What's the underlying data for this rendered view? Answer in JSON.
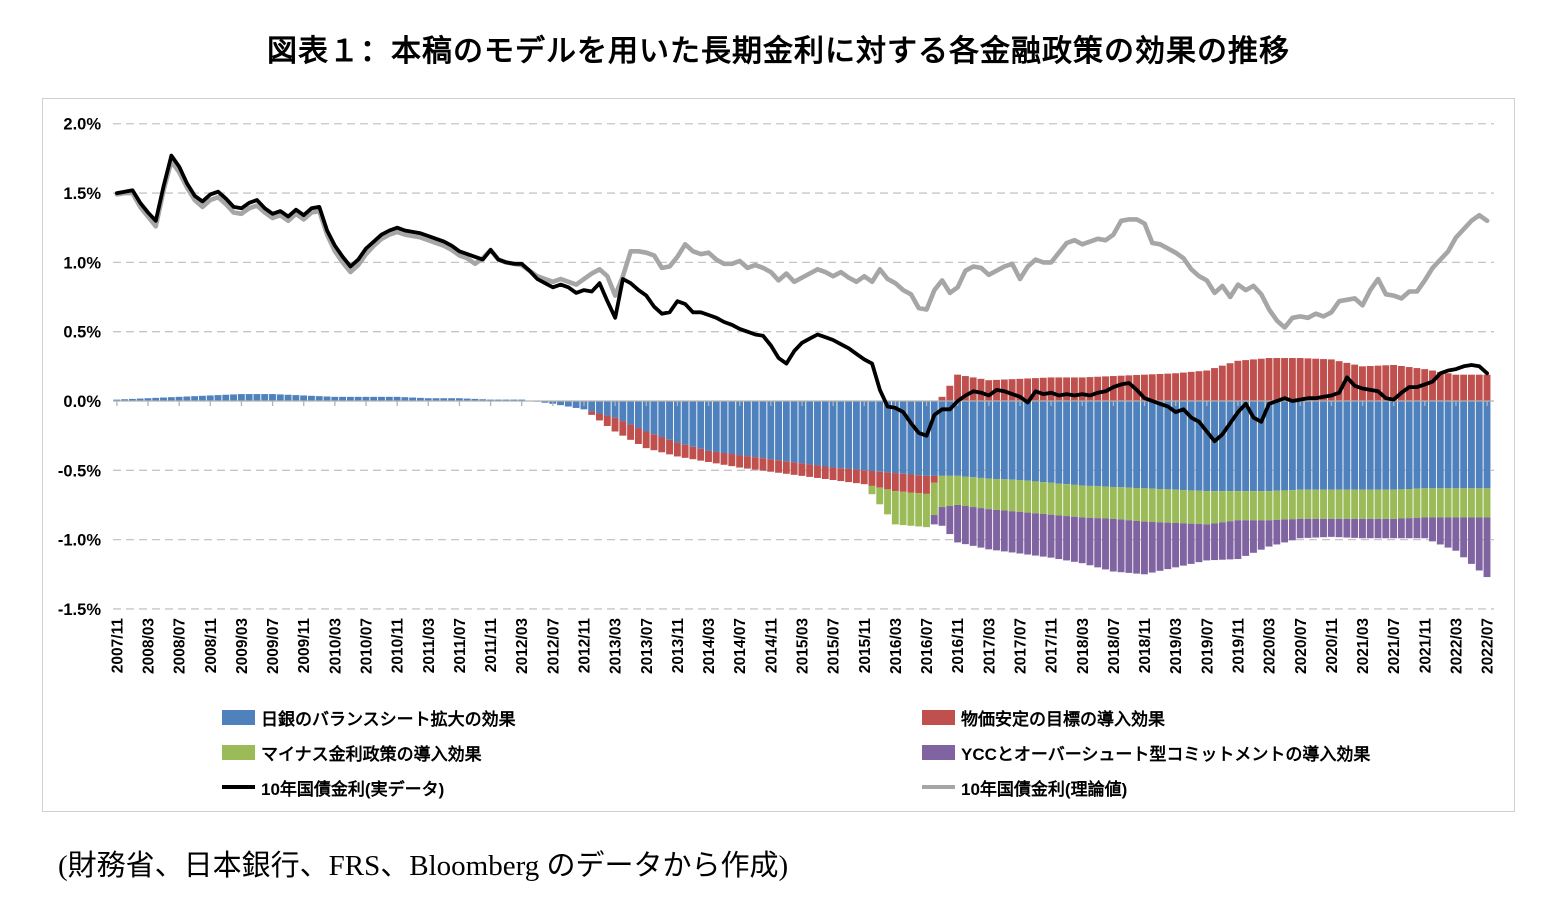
{
  "figure": {
    "title": "図表１：本稿のモデルを用いた長期金利に対する各金融政策の効果の推移",
    "source_note": "(財務省、日本銀行、FRS、Bloomberg のデータから作成)"
  },
  "chart_data": {
    "type": "bar",
    "subtype": "monthly stacked bars with two overlay lines",
    "x_start": "2007/11",
    "x_end": "2022/07",
    "x_interval_months": 1,
    "n_months": 177,
    "tick_month_step": 4,
    "tick_labels": [
      "2007/11",
      "2008/03",
      "2008/07",
      "2008/11",
      "2009/03",
      "2009/07",
      "2009/11",
      "2010/03",
      "2010/07",
      "2010/11",
      "2011/03",
      "2011/07",
      "2011/11",
      "2012/03",
      "2012/07",
      "2012/11",
      "2013/03",
      "2013/07",
      "2013/11",
      "2014/03",
      "2014/07",
      "2014/11",
      "2015/03",
      "2015/07",
      "2015/11",
      "2016/03",
      "2016/07",
      "2016/11",
      "2017/03",
      "2017/07",
      "2017/11",
      "2018/03",
      "2018/07",
      "2018/11",
      "2019/03",
      "2019/07",
      "2019/11",
      "2020/03",
      "2020/07",
      "2020/11",
      "2021/03",
      "2021/07",
      "2021/11",
      "2022/03",
      "2022/07"
    ],
    "ylim": [
      -1.5,
      2.0
    ],
    "ytick_labels": [
      "2.0%",
      "1.5%",
      "1.0%",
      "0.5%",
      "0.0%",
      "-0.5%",
      "-1.0%",
      "-1.5%"
    ],
    "ytick_values": [
      2.0,
      1.5,
      1.0,
      0.5,
      0.0,
      -0.5,
      -1.0,
      -1.5
    ],
    "grid": "dashed horizontal gridlines, solid zero axis with down ticks",
    "legend_position": "bottom inside plot box, two columns",
    "axis_color": "#b3b3b3",
    "grid_color": "#c6c6c6",
    "bar_series": [
      {
        "name": "日銀のバランスシート拡大の効果",
        "color": "#4f81bd",
        "values_at_ticks": [
          0.01,
          0.02,
          0.03,
          0.04,
          0.05,
          0.05,
          0.04,
          0.03,
          0.03,
          0.03,
          0.02,
          0.02,
          0.01,
          0.01,
          -0.02,
          -0.06,
          -0.12,
          -0.22,
          -0.3,
          -0.36,
          -0.39,
          -0.42,
          -0.45,
          -0.48,
          -0.5,
          -0.52,
          -0.54,
          -0.54,
          -0.56,
          -0.57,
          -0.59,
          -0.61,
          -0.62,
          -0.63,
          -0.64,
          -0.65,
          -0.65,
          -0.65,
          -0.64,
          -0.64,
          -0.64,
          -0.64,
          -0.63,
          -0.63,
          -0.63
        ]
      },
      {
        "name": "物価安定の目標の導入効果",
        "color": "#c0504d",
        "values_at_ticks": [
          0,
          0,
          0,
          0,
          0,
          0,
          0,
          0,
          0,
          0,
          0,
          0,
          0,
          0,
          0,
          0,
          -0.1,
          -0.12,
          -0.1,
          -0.08,
          -0.09,
          -0.09,
          -0.09,
          -0.09,
          -0.1,
          -0.13,
          -0.13,
          0.19,
          0.15,
          0.16,
          0.17,
          0.17,
          0.18,
          0.19,
          0.2,
          0.22,
          0.29,
          0.31,
          0.31,
          0.3,
          0.25,
          0.26,
          0.23,
          0.19,
          0.19
        ]
      },
      {
        "name": "マイナス金利政策の導入効果",
        "color": "#9bbb59",
        "values_at_ticks": [
          0,
          0,
          0,
          0,
          0,
          0,
          0,
          0,
          0,
          0,
          0,
          0,
          0,
          0,
          0,
          0,
          0,
          0,
          0,
          0,
          0,
          0,
          0,
          0,
          0,
          -0.24,
          -0.24,
          -0.21,
          -0.22,
          -0.23,
          -0.23,
          -0.23,
          -0.23,
          -0.24,
          -0.24,
          -0.24,
          -0.21,
          -0.21,
          -0.21,
          -0.21,
          -0.21,
          -0.21,
          -0.21,
          -0.21,
          -0.21
        ]
      },
      {
        "name": "YCCとオーバーシュート型コミットメントの導入効果",
        "color": "#8064a2",
        "values_at_ticks": [
          0,
          0,
          0,
          0,
          0,
          0,
          0,
          0,
          0,
          0,
          0,
          0,
          0,
          0,
          0,
          0,
          0,
          0,
          0,
          0,
          0,
          0,
          0,
          0,
          0,
          0,
          0,
          -0.27,
          -0.29,
          -0.3,
          -0.31,
          -0.33,
          -0.38,
          -0.38,
          -0.32,
          -0.26,
          -0.28,
          -0.19,
          -0.14,
          -0.13,
          -0.14,
          -0.14,
          -0.15,
          -0.24,
          -0.43
        ]
      }
    ],
    "line_series": [
      {
        "name": "10年国債金利(実データ)",
        "color": "#000000",
        "width": 3.8,
        "monthly_values": [
          1.5,
          1.51,
          1.52,
          1.43,
          1.36,
          1.3,
          1.55,
          1.77,
          1.69,
          1.57,
          1.48,
          1.44,
          1.49,
          1.51,
          1.46,
          1.4,
          1.39,
          1.43,
          1.45,
          1.39,
          1.35,
          1.37,
          1.33,
          1.38,
          1.34,
          1.39,
          1.4,
          1.23,
          1.12,
          1.04,
          0.97,
          1.02,
          1.1,
          1.15,
          1.2,
          1.23,
          1.25,
          1.23,
          1.22,
          1.21,
          1.19,
          1.17,
          1.15,
          1.12,
          1.08,
          1.06,
          1.04,
          1.02,
          1.09,
          1.02,
          1.0,
          0.99,
          0.99,
          0.94,
          0.88,
          0.85,
          0.82,
          0.84,
          0.82,
          0.78,
          0.8,
          0.79,
          0.85,
          0.72,
          0.6,
          0.88,
          0.85,
          0.8,
          0.76,
          0.68,
          0.63,
          0.64,
          0.72,
          0.7,
          0.64,
          0.64,
          0.62,
          0.6,
          0.57,
          0.55,
          0.52,
          0.5,
          0.48,
          0.47,
          0.4,
          0.31,
          0.27,
          0.36,
          0.42,
          0.45,
          0.48,
          0.46,
          0.44,
          0.41,
          0.38,
          0.34,
          0.3,
          0.27,
          0.08,
          -0.04,
          -0.05,
          -0.08,
          -0.16,
          -0.23,
          -0.25,
          -0.1,
          -0.06,
          -0.06,
          0.0,
          0.04,
          0.07,
          0.06,
          0.04,
          0.08,
          0.07,
          0.05,
          0.03,
          -0.01,
          0.07,
          0.05,
          0.06,
          0.04,
          0.05,
          0.04,
          0.05,
          0.04,
          0.06,
          0.07,
          0.1,
          0.12,
          0.13,
          0.08,
          0.02,
          0.0,
          -0.02,
          -0.04,
          -0.08,
          -0.06,
          -0.12,
          -0.15,
          -0.22,
          -0.29,
          -0.24,
          -0.16,
          -0.08,
          -0.02,
          -0.12,
          -0.15,
          -0.02,
          0.0,
          0.02,
          0.0,
          0.01,
          0.02,
          0.02,
          0.03,
          0.04,
          0.06,
          0.17,
          0.11,
          0.09,
          0.08,
          0.07,
          0.02,
          0.01,
          0.06,
          0.1,
          0.1,
          0.12,
          0.14,
          0.2,
          0.22,
          0.23,
          0.25,
          0.26,
          0.25,
          0.2
        ]
      },
      {
        "name": "10年国債金利(理論値)",
        "color": "#a6a6a6",
        "width": 4.6,
        "monthly_values": [
          1.49,
          1.5,
          1.5,
          1.4,
          1.33,
          1.26,
          1.52,
          1.73,
          1.65,
          1.54,
          1.45,
          1.4,
          1.45,
          1.47,
          1.42,
          1.36,
          1.35,
          1.39,
          1.41,
          1.36,
          1.32,
          1.34,
          1.3,
          1.35,
          1.31,
          1.36,
          1.37,
          1.2,
          1.08,
          1.0,
          0.93,
          0.98,
          1.06,
          1.12,
          1.17,
          1.2,
          1.22,
          1.2,
          1.19,
          1.18,
          1.16,
          1.14,
          1.12,
          1.09,
          1.05,
          1.03,
          0.99,
          1.03,
          1.09,
          1.02,
          1.0,
          0.99,
          0.98,
          0.94,
          0.9,
          0.88,
          0.86,
          0.88,
          0.86,
          0.84,
          0.88,
          0.92,
          0.95,
          0.9,
          0.76,
          0.9,
          1.08,
          1.08,
          1.07,
          1.05,
          0.96,
          0.97,
          1.04,
          1.13,
          1.08,
          1.06,
          1.07,
          1.02,
          0.99,
          0.99,
          1.01,
          0.96,
          0.98,
          0.96,
          0.93,
          0.87,
          0.92,
          0.86,
          0.89,
          0.92,
          0.95,
          0.93,
          0.9,
          0.93,
          0.89,
          0.86,
          0.9,
          0.86,
          0.95,
          0.88,
          0.85,
          0.8,
          0.77,
          0.67,
          0.66,
          0.8,
          0.87,
          0.78,
          0.82,
          0.94,
          0.97,
          0.96,
          0.91,
          0.94,
          0.97,
          0.99,
          0.88,
          0.97,
          1.02,
          1.0,
          1.0,
          1.07,
          1.14,
          1.16,
          1.13,
          1.15,
          1.17,
          1.16,
          1.2,
          1.3,
          1.31,
          1.31,
          1.28,
          1.14,
          1.13,
          1.1,
          1.07,
          1.03,
          0.95,
          0.9,
          0.87,
          0.78,
          0.83,
          0.75,
          0.84,
          0.8,
          0.83,
          0.77,
          0.66,
          0.58,
          0.53,
          0.6,
          0.61,
          0.6,
          0.63,
          0.61,
          0.64,
          0.72,
          0.73,
          0.74,
          0.69,
          0.8,
          0.88,
          0.77,
          0.76,
          0.74,
          0.79,
          0.79,
          0.87,
          0.96,
          1.02,
          1.08,
          1.18,
          1.24,
          1.3,
          1.34,
          1.3
        ]
      }
    ]
  },
  "legend": {
    "columns": [
      [
        0,
        2,
        4
      ],
      [
        1,
        3,
        5
      ]
    ]
  }
}
